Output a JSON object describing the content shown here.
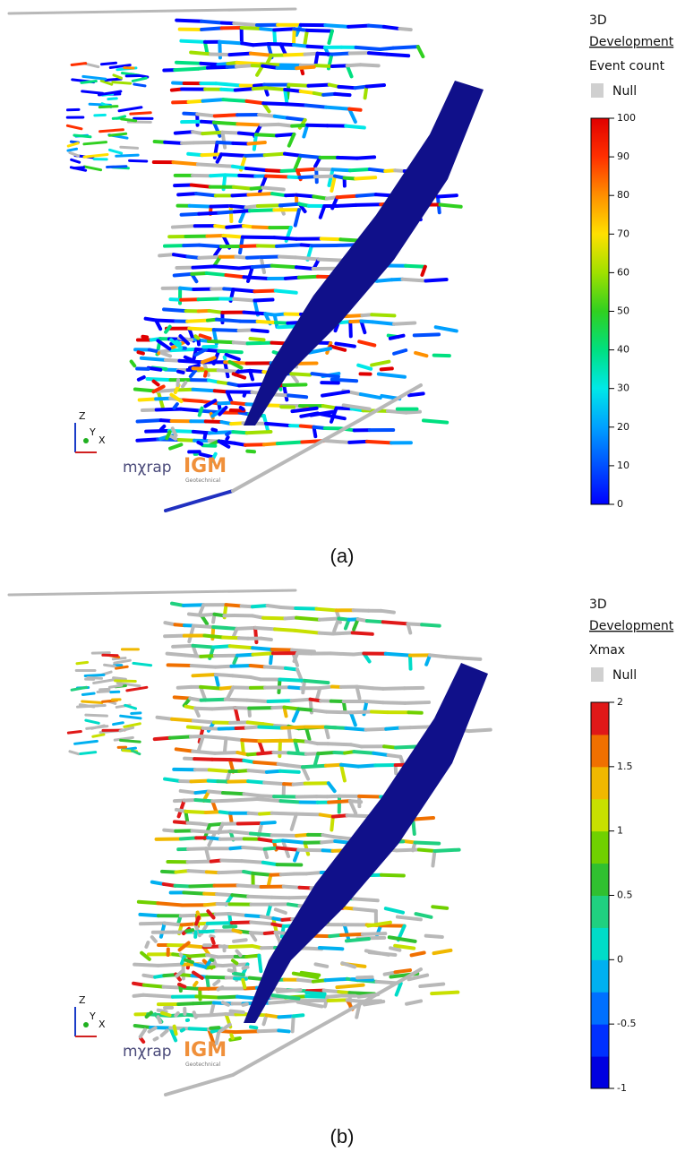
{
  "panels": [
    {
      "caption": "(a)",
      "legend": {
        "title": "3D",
        "subtitle": "Development",
        "variable": "Event count",
        "null_label": "Null",
        "range": [
          0,
          100
        ],
        "ticks": [
          0,
          10,
          20,
          30,
          40,
          50,
          60,
          70,
          80,
          90,
          100
        ],
        "discrete": false,
        "colormap": [
          "#0000ff",
          "#0050ff",
          "#00a0ff",
          "#00e8e8",
          "#00e080",
          "#30d020",
          "#a0e000",
          "#ffe000",
          "#ff9000",
          "#ff3000",
          "#e00000"
        ]
      },
      "axes": {
        "z": "Z",
        "y": "Y",
        "x": "X"
      },
      "logo": {
        "left": "mχrap",
        "right": "IGM",
        "right_sub": "Geotechnical"
      }
    },
    {
      "caption": "(b)",
      "legend": {
        "title": "3D",
        "subtitle": "Development",
        "variable": "Xmax",
        "null_label": "Null",
        "range": [
          -1,
          2
        ],
        "ticks": [
          -1,
          -0.5,
          0,
          0.5,
          1,
          1.5,
          2
        ],
        "discrete": true,
        "colormap": [
          "#0000e0",
          "#0030ff",
          "#0070ff",
          "#00b0f0",
          "#00dcc8",
          "#20d080",
          "#30c030",
          "#70d000",
          "#c8e000",
          "#f0b800",
          "#f07000",
          "#e01818"
        ]
      },
      "axes": {
        "z": "Z",
        "y": "Y",
        "x": "X"
      },
      "logo": {
        "left": "mχrap",
        "right": "IGM",
        "right_sub": "Geotechnical"
      }
    }
  ]
}
